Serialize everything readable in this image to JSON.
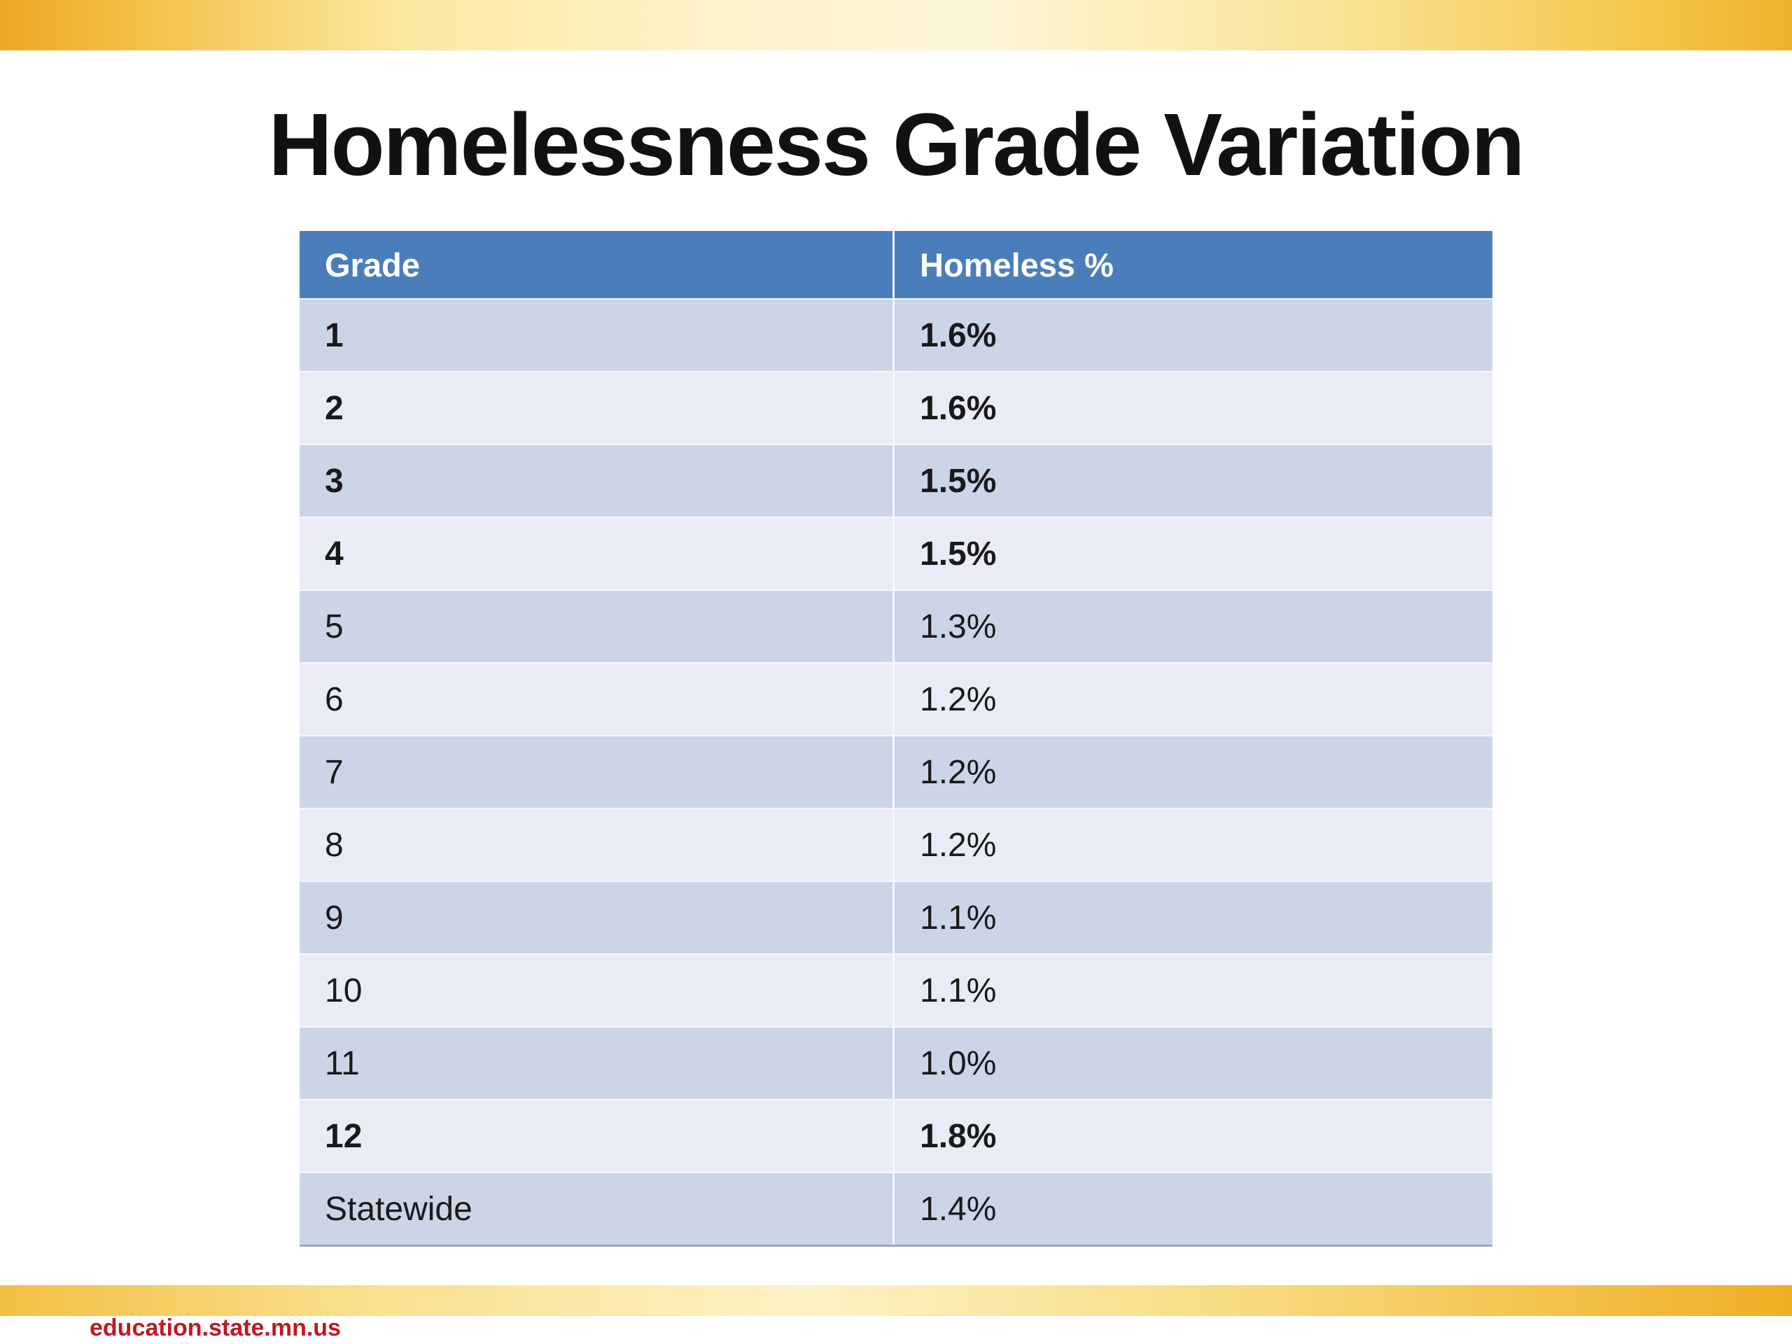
{
  "slide": {
    "title": "Homelessness Grade Variation",
    "footer": "education.state.mn.us"
  },
  "table": {
    "headers": [
      "Grade",
      "Homeless %"
    ],
    "rows": [
      {
        "grade": "1",
        "pct": "1.6%",
        "bold": true
      },
      {
        "grade": "2",
        "pct": "1.6%",
        "bold": true
      },
      {
        "grade": "3",
        "pct": "1.5%",
        "bold": true
      },
      {
        "grade": "4",
        "pct": "1.5%",
        "bold": true
      },
      {
        "grade": "5",
        "pct": "1.3%",
        "bold": false
      },
      {
        "grade": "6",
        "pct": "1.2%",
        "bold": false
      },
      {
        "grade": "7",
        "pct": "1.2%",
        "bold": false
      },
      {
        "grade": "8",
        "pct": "1.2%",
        "bold": false
      },
      {
        "grade": "9",
        "pct": "1.1%",
        "bold": false
      },
      {
        "grade": "10",
        "pct": "1.1%",
        "bold": false
      },
      {
        "grade": "11",
        "pct": "1.0%",
        "bold": false
      },
      {
        "grade": "12",
        "pct": "1.8%",
        "bold": true
      },
      {
        "grade": "Statewide",
        "pct": "1.4%",
        "bold": false
      }
    ]
  },
  "chart_data": {
    "type": "table",
    "title": "Homelessness Grade Variation",
    "columns": [
      "Grade",
      "Homeless %"
    ],
    "rows": [
      [
        "1",
        "1.6%"
      ],
      [
        "2",
        "1.6%"
      ],
      [
        "3",
        "1.5%"
      ],
      [
        "4",
        "1.5%"
      ],
      [
        "5",
        "1.3%"
      ],
      [
        "6",
        "1.2%"
      ],
      [
        "7",
        "1.2%"
      ],
      [
        "8",
        "1.2%"
      ],
      [
        "9",
        "1.1%"
      ],
      [
        "10",
        "1.1%"
      ],
      [
        "11",
        "1.0%"
      ],
      [
        "12",
        "1.8%"
      ],
      [
        "Statewide",
        "1.4%"
      ]
    ]
  },
  "colors": {
    "header_bg": "#4a7ebb",
    "band_dark": "#ccd5e6",
    "band_light": "#e9ecf4",
    "gold_deep": "#eda821",
    "gold_pale": "#fdf6d6",
    "footer_red": "#c01823"
  }
}
